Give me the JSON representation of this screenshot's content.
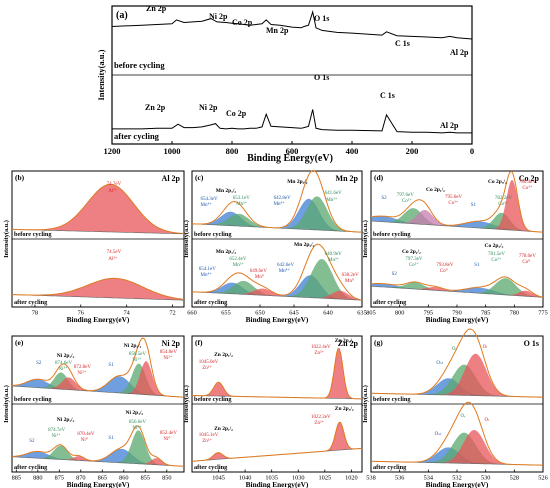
{
  "chart_data": [
    {
      "id": "a",
      "type": "line",
      "panel_label": "(a)",
      "xlabel": "Binding Energy(eV)",
      "ylabel": "Intensity(a.u.)",
      "xlim": [
        1200,
        0
      ],
      "x_reversed": true,
      "ticks": [
        "1200",
        "1000",
        "800",
        "600",
        "400",
        "200",
        "0"
      ],
      "series": [
        {
          "name": "before cycling",
          "x": [
            1200,
            1100,
            1050,
            1000,
            985,
            960,
            930,
            900,
            870,
            850,
            820,
            800,
            780,
            760,
            740,
            720,
            700,
            686,
            670,
            640,
            600,
            570,
            560,
            545,
            531,
            520,
            500,
            450,
            400,
            300,
            285,
            250,
            200,
            150,
            100,
            74,
            50,
            0
          ],
          "y": [
            72,
            74,
            75,
            76,
            82,
            78,
            79,
            80,
            84,
            79,
            78,
            77,
            76,
            75,
            74,
            75,
            76,
            82,
            75,
            74,
            71,
            70,
            72,
            74,
            94,
            70,
            66,
            63,
            62,
            59,
            64,
            58,
            57,
            56,
            55,
            57,
            55,
            53
          ]
        },
        {
          "name": "after cycling",
          "x": [
            1200,
            1100,
            1050,
            1000,
            980,
            960,
            930,
            900,
            870,
            855,
            840,
            820,
            800,
            780,
            760,
            740,
            720,
            700,
            686,
            670,
            640,
            600,
            570,
            560,
            545,
            531,
            520,
            500,
            450,
            400,
            300,
            285,
            250,
            200,
            150,
            100,
            74,
            50,
            0
          ],
          "y": [
            21,
            21,
            22,
            22,
            28,
            23,
            23,
            24,
            27,
            29,
            22,
            21,
            22,
            21,
            21,
            22,
            22,
            24,
            43,
            25,
            24,
            23,
            22,
            23,
            25,
            50,
            22,
            20,
            19,
            19,
            18,
            42,
            17,
            16,
            16,
            15,
            16,
            15,
            15
          ]
        }
      ],
      "annotations": [
        {
          "text": "Zn 2p",
          "x": 1022,
          "y": "before"
        },
        {
          "text": "Ni 2p",
          "x": 855,
          "y": "before"
        },
        {
          "text": "Co 2p",
          "x": 780,
          "y": "before"
        },
        {
          "text": "Mn 2p",
          "x": 641,
          "y": "before"
        },
        {
          "text": "O 1s",
          "x": 531,
          "y": "before"
        },
        {
          "text": "C 1s",
          "x": 285,
          "y": "before"
        },
        {
          "text": "Al 2p",
          "x": 74,
          "y": "before"
        },
        {
          "text": "O 1s",
          "x": 531,
          "y": "after"
        },
        {
          "text": "C 1s",
          "x": 285,
          "y": "after"
        },
        {
          "text": "Zn 2p",
          "x": 1022,
          "y": "after"
        },
        {
          "text": "Ni 2p",
          "x": 855,
          "y": "after"
        },
        {
          "text": "Co 2p",
          "x": 780,
          "y": "after"
        },
        {
          "text": "Al 2p",
          "x": 74,
          "y": "after"
        }
      ],
      "series_labels": [
        "before cycling",
        "after cycling"
      ]
    },
    {
      "id": "b",
      "type": "line",
      "panel_label": "(b)",
      "title": "Al 2p",
      "xlabel": "Binding Energy(eV)",
      "ylabel": "Intensity(a.u.)",
      "xlim": [
        79,
        71.5
      ],
      "ticks": [
        "78",
        "76",
        "74",
        "72"
      ],
      "top": {
        "label": "before cycling",
        "peaks": [
          {
            "center": 74.7,
            "text": "74.7eV",
            "ion": "Al³⁺"
          }
        ]
      },
      "bottom": {
        "label": "after cycling",
        "peaks": [
          {
            "center": 74.5,
            "text": "74.5eV",
            "ion": "Al³⁺"
          }
        ]
      }
    },
    {
      "id": "c",
      "type": "line",
      "panel_label": "(c)",
      "title": "Mn 2p",
      "xlabel": "Binding Energy(eV)",
      "ylabel": "Intensity(a.u.)",
      "xlim": [
        660,
        635
      ],
      "ticks": [
        "660",
        "655",
        "650",
        "645",
        "640",
        "635"
      ],
      "top": {
        "label": "before cycling",
        "peaks_text": [
          "Mn 2p₁/₂",
          "654.3eV",
          "Mn⁴⁺",
          "653.1eV",
          "Mn³⁺",
          "Mn 2p₃/₂",
          "642.8eV",
          "Mn⁴⁺",
          "641.6eV",
          "Mn³⁺"
        ]
      },
      "bottom": {
        "label": "after cycling",
        "peaks_text": [
          "Mn 2p₁/₂",
          "654.1eV",
          "Mn⁴⁺",
          "652.4eV",
          "Mn³⁺",
          "649.6eV",
          "Mn⁰",
          "Mn 2p₃/₂",
          "642.6eV",
          "Mn⁴⁺",
          "640.9eV",
          "Mn³⁺",
          "638.2eV",
          "Mn⁰"
        ]
      }
    },
    {
      "id": "d",
      "type": "line",
      "panel_label": "(d)",
      "title": "Co 2p",
      "xlabel": "Binding Energy(eV)",
      "ylabel": "Intensity(a.u.)",
      "xlim": [
        805,
        775
      ],
      "ticks": [
        "805",
        "800",
        "795",
        "790",
        "785",
        "780",
        "775"
      ],
      "top": {
        "label": "before cycling",
        "peaks_text": [
          "Co 2p₁/₂",
          "S2",
          "797.6eV",
          "Co²⁺",
          "795.6eV",
          "Co³⁺",
          "S1",
          "782.2eV",
          "Co²⁺",
          "Co 2p₃/₂",
          "780.4eV",
          "Co³⁺"
        ]
      },
      "bottom": {
        "label": "after cycling",
        "peaks_text": [
          "Co 2p₁/₂",
          "797.3eV",
          "Co²⁺",
          "S2",
          "793.8eV",
          "Co⁰",
          "S1",
          "781.5eV",
          "Co²⁺",
          "Co 2p₃/₂",
          "778.0eV",
          "Co⁰"
        ]
      }
    },
    {
      "id": "e",
      "type": "line",
      "panel_label": "(e)",
      "title": "Ni 2p",
      "xlabel": "Binding Energy(eV)",
      "ylabel": "Intensity(a.u.)",
      "xlim": [
        886,
        846
      ],
      "ticks": [
        "885",
        "880",
        "875",
        "870",
        "865",
        "860",
        "855",
        "850"
      ],
      "top": {
        "label": "before cycling",
        "peaks_text": [
          "Ni 2p₁/₂",
          "S2",
          "874.6eV",
          "Ni³⁺",
          "872.8eV",
          "Ni²⁺",
          "S1",
          "Ni 2p₃/₂",
          "856.5eV",
          "Ni³⁺",
          "854.8eV",
          "Ni²⁺"
        ]
      },
      "bottom": {
        "label": "after cycling",
        "peaks_text": [
          "Ni 2p₁/₂",
          "S2",
          "874.7eV",
          "Ni³⁺",
          "870.4eV",
          "Ni⁰",
          "S1",
          "Ni 2p₃/₂",
          "856.6eV",
          "Ni³⁺",
          "852.4eV",
          "Ni⁰"
        ]
      }
    },
    {
      "id": "f",
      "type": "line",
      "panel_label": "(f)",
      "title": "Zn 2p",
      "xlabel": "Binding Energy(eV)",
      "ylabel": "Intensity(a.u.)",
      "xlim": [
        1050,
        1018
      ],
      "ticks": [
        "1045",
        "1040",
        "1035",
        "1030",
        "1025",
        "1020"
      ],
      "top": {
        "label": "before cycling",
        "peaks_text": [
          "1045.0eV",
          "Zn²⁺",
          "Zn 2p₁/₂",
          "1022.4eV",
          "Zn²⁺",
          "Zn 2p₃/₂"
        ]
      },
      "bottom": {
        "label": "after cycling",
        "peaks_text": [
          "1045.1eV",
          "Zn²⁺",
          "Zn 2p₁/₂",
          "1022.2eV",
          "Zn²⁺",
          "Zn 2p₃/₂"
        ]
      }
    },
    {
      "id": "g",
      "type": "line",
      "panel_label": "(g)",
      "title": "O 1s",
      "xlabel": "Binding Energy(eV)",
      "ylabel": "Intensity(a.u.)",
      "xlim": [
        538,
        526
      ],
      "ticks": [
        "538",
        "536",
        "534",
        "532",
        "530",
        "528",
        "526"
      ],
      "top": {
        "label": "before cycling",
        "peaks_text": [
          "Oₛₜ",
          "Oᵥ",
          "Oₗ"
        ]
      },
      "bottom": {
        "label": "after cycling",
        "peaks_text": [
          "Oₛₜ",
          "Oᵥ",
          "Oₗ"
        ]
      }
    }
  ]
}
